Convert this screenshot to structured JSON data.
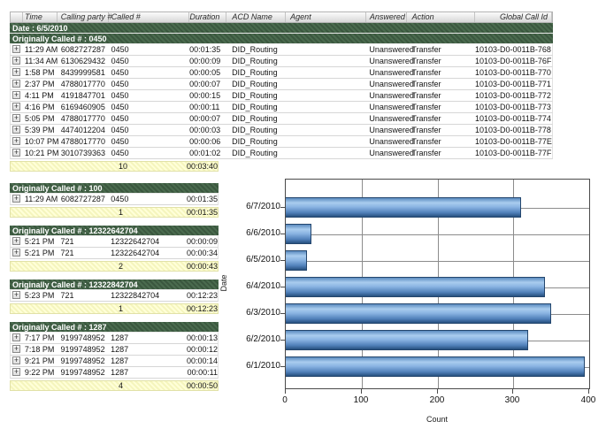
{
  "colors": {
    "band_green_light": "#4a6b4e",
    "band_green_dark": "#3b573f",
    "summary_yellow_light": "#ffffd8",
    "summary_yellow_dark": "#f5f5bd",
    "bar_top": "#5c8cc0",
    "bar_light": "#a9ccee",
    "bar_mid": "#8ab4e2",
    "bar_deep": "#5181ba",
    "bar_dark": "#27507f"
  },
  "table": {
    "columns": [
      "",
      "Time",
      "Calling party #",
      "Called #",
      "Duration",
      "ACD Name",
      "Agent",
      "Answered",
      "Action",
      "Global Call Id"
    ],
    "expand_symbol": "+",
    "date_band": "Date : 6/5/2010",
    "group_band": "Originally Called # : 0450",
    "rows": [
      {
        "time": "11:29 AM",
        "calling": "6082727287",
        "called": "0450",
        "duration": "00:01:35",
        "acd": "DID_Routing",
        "agent": "",
        "answered": "Unanswered",
        "action": "Transfer",
        "global": "10103-D0-0011B-768"
      },
      {
        "time": "11:34 AM",
        "calling": "6130629432",
        "called": "0450",
        "duration": "00:00:09",
        "acd": "DID_Routing",
        "agent": "",
        "answered": "Unanswered",
        "action": "Transfer",
        "global": "10103-D0-0011B-76F"
      },
      {
        "time": "1:58 PM",
        "calling": "8439999581",
        "called": "0450",
        "duration": "00:00:05",
        "acd": "DID_Routing",
        "agent": "",
        "answered": "Unanswered",
        "action": "Transfer",
        "global": "10103-D0-0011B-770"
      },
      {
        "time": "2:37 PM",
        "calling": "4788017770",
        "called": "0450",
        "duration": "00:00:07",
        "acd": "DID_Routing",
        "agent": "",
        "answered": "Unanswered",
        "action": "Transfer",
        "global": "10103-D0-0011B-771"
      },
      {
        "time": "4:11 PM",
        "calling": "4191847701",
        "called": "0450",
        "duration": "00:00:15",
        "acd": "DID_Routing",
        "agent": "",
        "answered": "Unanswered",
        "action": "Transfer",
        "global": "10103-D0-0011B-772"
      },
      {
        "time": "4:16 PM",
        "calling": "6169460905",
        "called": "0450",
        "duration": "00:00:11",
        "acd": "DID_Routing",
        "agent": "",
        "answered": "Unanswered",
        "action": "Transfer",
        "global": "10103-D0-0011B-773"
      },
      {
        "time": "5:05 PM",
        "calling": "4788017770",
        "called": "0450",
        "duration": "00:00:07",
        "acd": "DID_Routing",
        "agent": "",
        "answered": "Unanswered",
        "action": "Transfer",
        "global": "10103-D0-0011B-774"
      },
      {
        "time": "5:39 PM",
        "calling": "4474012204",
        "called": "0450",
        "duration": "00:00:03",
        "acd": "DID_Routing",
        "agent": "",
        "answered": "Unanswered",
        "action": "Transfer",
        "global": "10103-D0-0011B-778"
      },
      {
        "time": "10:07 PM",
        "calling": "4788017770",
        "called": "0450",
        "duration": "00:00:06",
        "acd": "DID_Routing",
        "agent": "",
        "answered": "Unanswered",
        "action": "Transfer",
        "global": "10103-D0-0011B-77E"
      },
      {
        "time": "10:21 PM",
        "calling": "3010739363",
        "called": "0450",
        "duration": "00:01:02",
        "acd": "DID_Routing",
        "agent": "",
        "answered": "Unanswered",
        "action": "Transfer",
        "global": "10103-D0-0011B-77F"
      }
    ],
    "summary": {
      "count": "10",
      "duration": "00:03:40"
    }
  },
  "groups": [
    {
      "band": "Originally Called # : 100",
      "rows": [
        {
          "time": "11:29 AM",
          "calling": "6082727287",
          "called": "0450",
          "duration": "00:01:35"
        }
      ],
      "summary": {
        "count": "1",
        "duration": "00:01:35"
      }
    },
    {
      "band": "Originally Called # : 12322642704",
      "rows": [
        {
          "time": "5:21 PM",
          "calling": "721",
          "called": "12322642704",
          "duration": "00:00:09"
        },
        {
          "time": "5:21 PM",
          "calling": "721",
          "called": "12322642704",
          "duration": "00:00:34"
        }
      ],
      "summary": {
        "count": "2",
        "duration": "00:00:43"
      }
    },
    {
      "band": "Originally Called # : 12322842704",
      "rows": [
        {
          "time": "5:23 PM",
          "calling": "721",
          "called": "12322842704",
          "duration": "00:12:23"
        }
      ],
      "summary": {
        "count": "1",
        "duration": "00:12:23"
      }
    },
    {
      "band": "Originally Called # : 1287",
      "rows": [
        {
          "time": "7:17 PM",
          "calling": "9199748952",
          "called": "1287",
          "duration": "00:00:13"
        },
        {
          "time": "7:18 PM",
          "calling": "9199748952",
          "called": "1287",
          "duration": "00:00:12"
        },
        {
          "time": "9:21 PM",
          "calling": "9199748952",
          "called": "1287",
          "duration": "00:00:14"
        },
        {
          "time": "9:22 PM",
          "calling": "9199748952",
          "called": "1287",
          "duration": "00:00:11"
        }
      ],
      "summary": {
        "count": "4",
        "duration": "00:00:50"
      }
    }
  ],
  "chart_data": {
    "type": "bar",
    "orientation": "horizontal",
    "title": "",
    "categories": [
      "6/7/2010",
      "6/6/2010",
      "6/5/2010",
      "6/4/2010",
      "6/3/2010",
      "6/2/2010",
      "6/1/2010"
    ],
    "values": [
      310,
      34,
      28,
      342,
      350,
      320,
      394
    ],
    "xlabel": "Count",
    "ylabel": "Date",
    "xlim": [
      0,
      400
    ],
    "xticks": [
      0,
      100,
      200,
      300,
      400
    ],
    "grid": true,
    "legend": false
  }
}
